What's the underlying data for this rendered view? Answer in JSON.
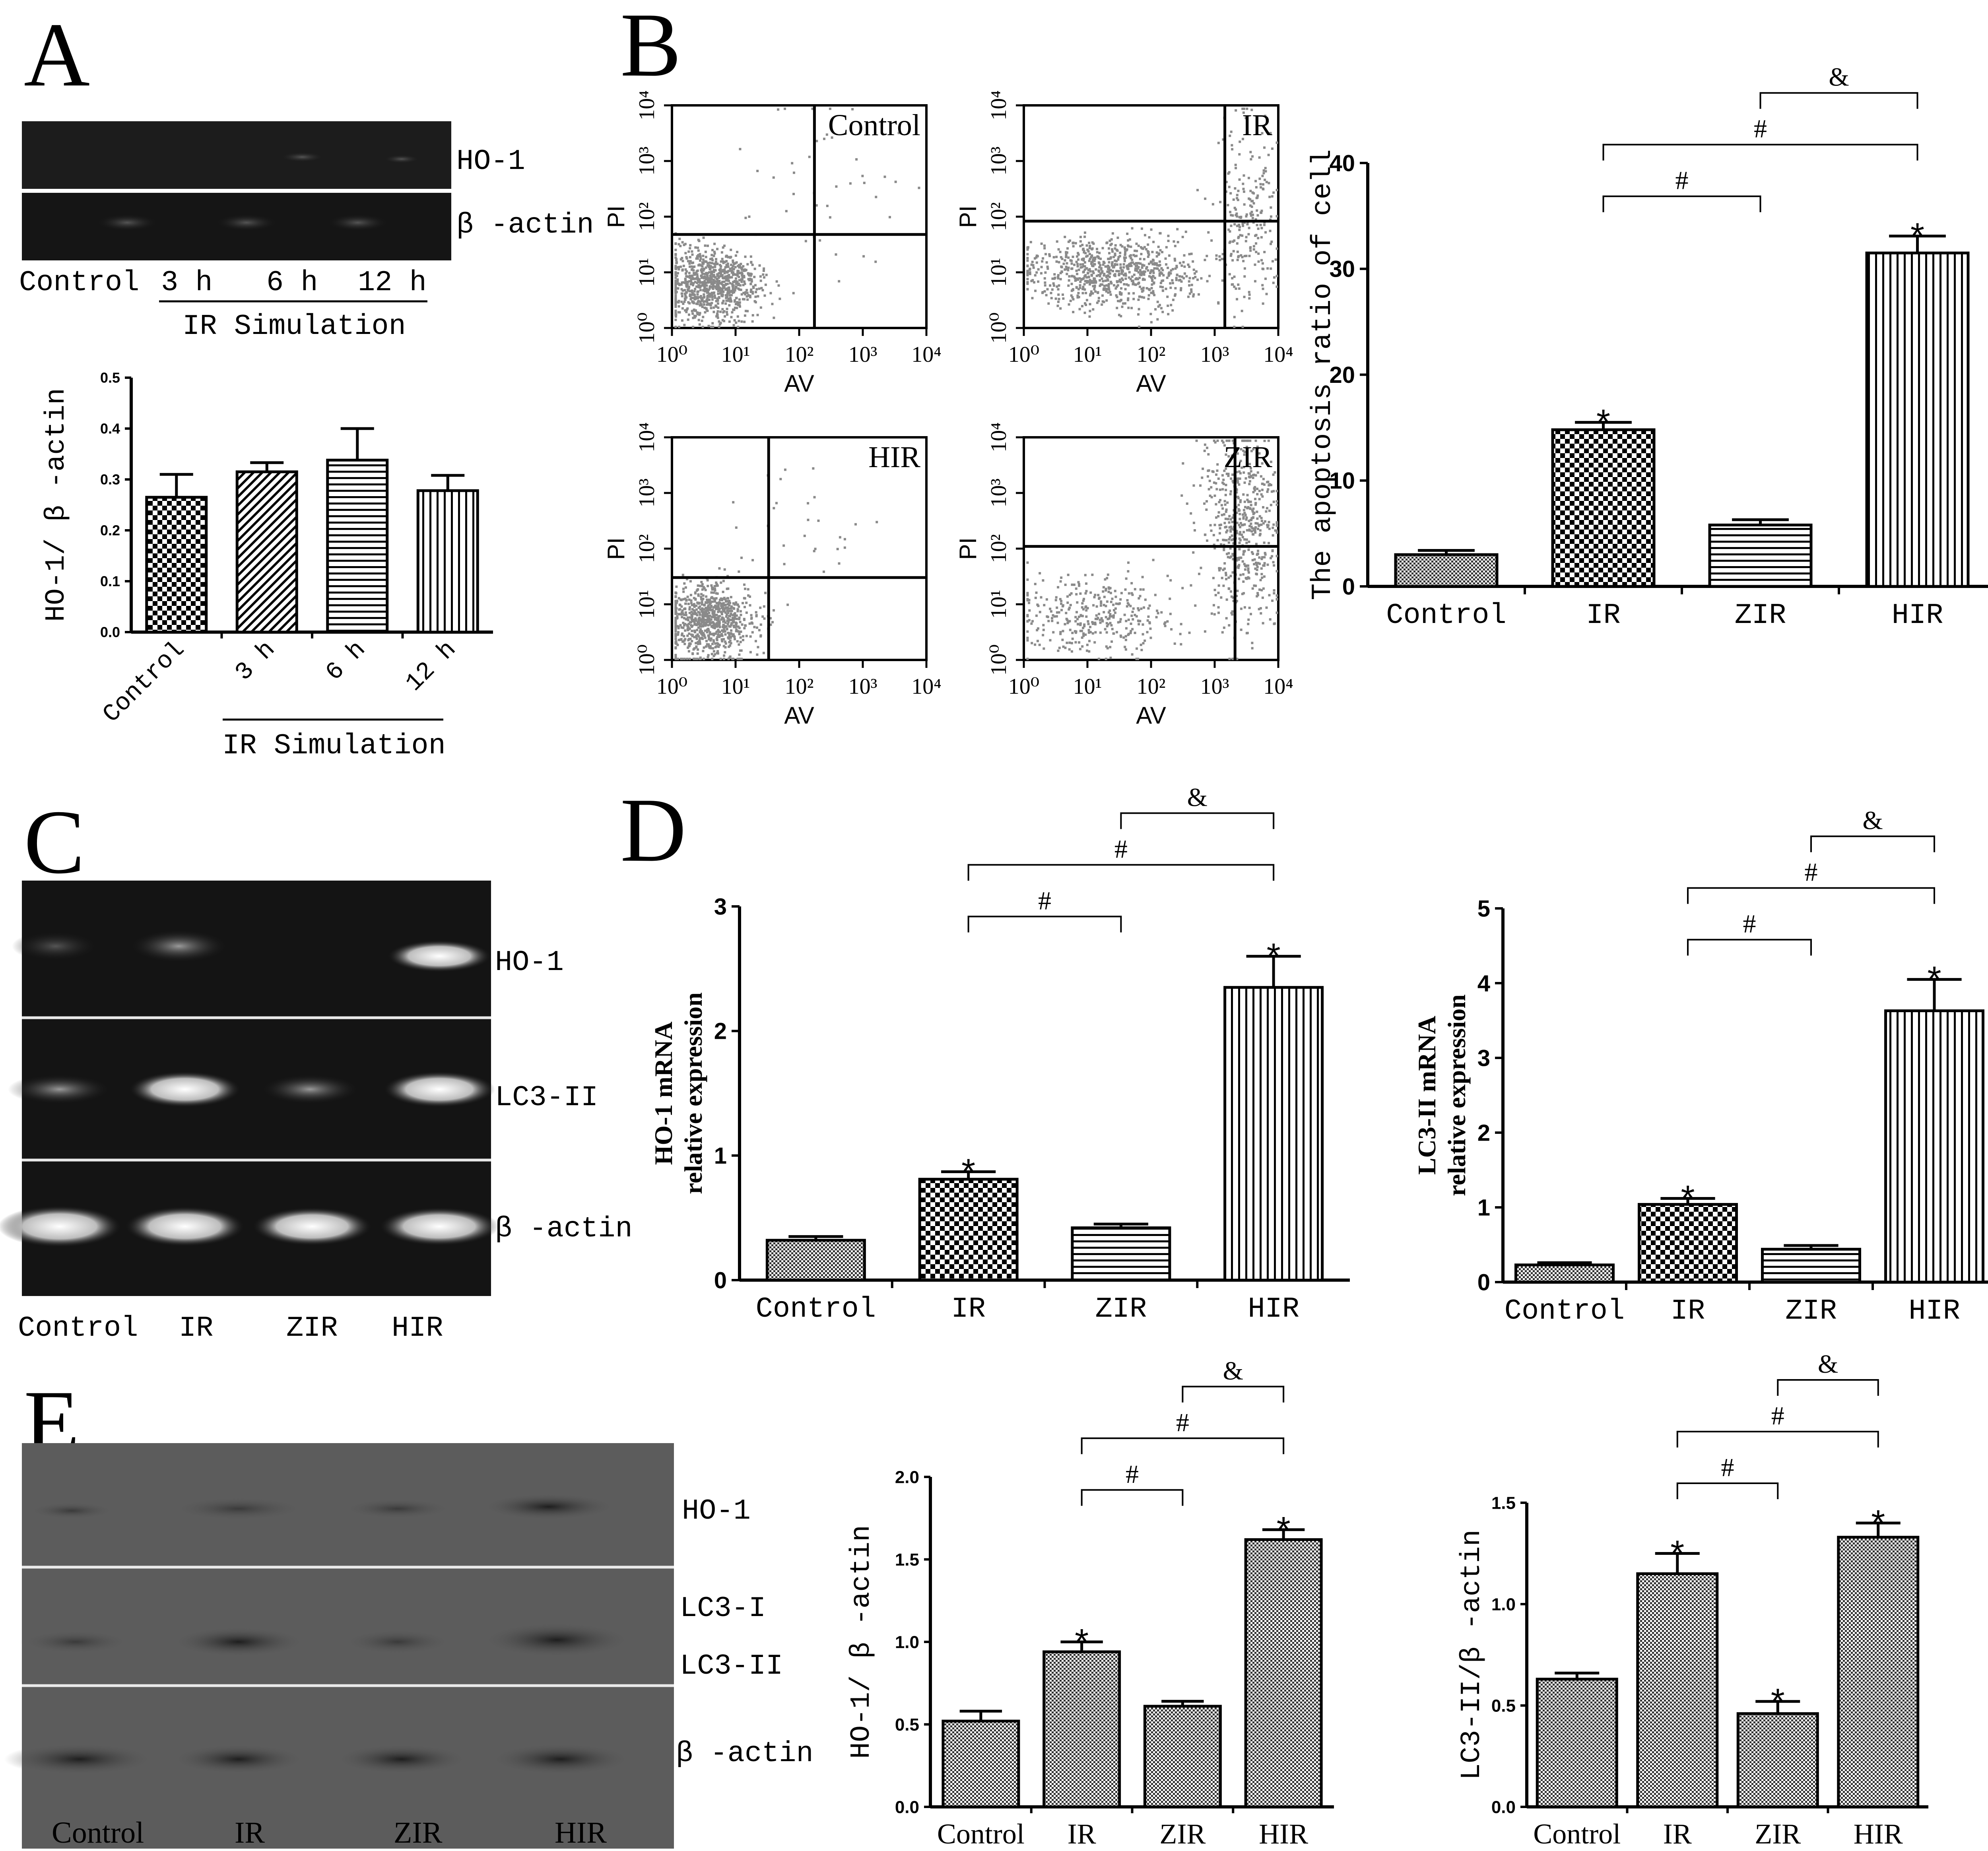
{
  "panels": {
    "A": {
      "letter": "A",
      "blot_labels": [
        "HO-1",
        "β -actin"
      ],
      "lane_labels": [
        "Control",
        "3 h",
        "6 h",
        "12 h"
      ],
      "group_label": "IR Simulation"
    },
    "B": {
      "letter": "B",
      "facs": [
        {
          "title": "Control",
          "ylabel": "PI",
          "xlabel": "AV"
        },
        {
          "title": "IR",
          "ylabel": "PI",
          "xlabel": "AV"
        },
        {
          "title": "HIR",
          "ylabel": "PI",
          "xlabel": "AV"
        },
        {
          "title": "ZIR",
          "ylabel": "PI",
          "xlabel": "AV"
        }
      ]
    },
    "C": {
      "letter": "C",
      "gel_labels": [
        "HO-1",
        "LC3-II",
        "β -actin"
      ],
      "lane_labels": [
        "Control",
        "IR",
        "ZIR",
        "HIR"
      ]
    },
    "D": {
      "letter": "D"
    },
    "E": {
      "letter": "E",
      "blot_labels": [
        "HO-1",
        "LC3-I",
        "LC3-II",
        "β -actin"
      ],
      "lane_labels": [
        "Control",
        "IR",
        "ZIR",
        "HIR"
      ]
    }
  },
  "chart_data": [
    {
      "id": "A_ho1",
      "type": "bar",
      "categories": [
        "Control",
        "3 h",
        "6 h",
        "12 h"
      ],
      "values": [
        0.265,
        0.315,
        0.338,
        0.278
      ],
      "errors": [
        0.045,
        0.018,
        0.062,
        0.03
      ],
      "ylabel": "HO-1/ β -actin",
      "xlabel": "",
      "group_label": "IR Simulation",
      "ylim": [
        0,
        0.5
      ],
      "yticks": [
        "0.0",
        "0.1",
        "0.2",
        "0.3",
        "0.4",
        "0.5"
      ],
      "significance": []
    },
    {
      "id": "B_apoptosis",
      "type": "bar",
      "categories": [
        "Control",
        "IR",
        "ZIR",
        "HIR"
      ],
      "values": [
        3.0,
        14.8,
        5.8,
        31.5
      ],
      "errors": [
        0.4,
        0.7,
        0.5,
        1.6
      ],
      "ylabel": "The apoptosis ratio of cell",
      "xlabel": "",
      "ylim": [
        0,
        40
      ],
      "yticks": [
        "0",
        "10",
        "20",
        "30",
        "40"
      ],
      "stars": [
        "",
        "*",
        "",
        "*"
      ],
      "significance": [
        {
          "from": 1,
          "to": 2,
          "mark": "#"
        },
        {
          "from": 1,
          "to": 3,
          "mark": "#"
        },
        {
          "from": 2,
          "to": 3,
          "mark": "&"
        }
      ]
    },
    {
      "id": "D_ho1_mrna",
      "type": "bar",
      "categories": [
        "Control",
        "IR",
        "ZIR",
        "HIR"
      ],
      "values": [
        0.32,
        0.81,
        0.42,
        2.35
      ],
      "errors": [
        0.03,
        0.06,
        0.03,
        0.25
      ],
      "ylabel": "HO-1 mRNA relative expression",
      "ylabel_lines": [
        "HO-1 mRNA",
        "relative expression"
      ],
      "xlabel": "",
      "ylim": [
        0,
        3
      ],
      "yticks": [
        "0",
        "1",
        "2",
        "3"
      ],
      "stars": [
        "",
        "*",
        "",
        "*"
      ],
      "significance": [
        {
          "from": 1,
          "to": 2,
          "mark": "#"
        },
        {
          "from": 1,
          "to": 3,
          "mark": "#"
        },
        {
          "from": 2,
          "to": 3,
          "mark": "&"
        }
      ]
    },
    {
      "id": "D_lc3_mrna",
      "type": "bar",
      "categories": [
        "Control",
        "IR",
        "ZIR",
        "HIR"
      ],
      "values": [
        0.23,
        1.04,
        0.44,
        3.63
      ],
      "errors": [
        0.03,
        0.08,
        0.05,
        0.42
      ],
      "ylabel": "LC3-II mRNA relative expression",
      "ylabel_lines": [
        "LC3-II mRNA",
        "relative expression"
      ],
      "xlabel": "",
      "ylim": [
        0,
        5
      ],
      "yticks": [
        "0",
        "1",
        "2",
        "3",
        "4",
        "5"
      ],
      "stars": [
        "",
        "*",
        "",
        "*"
      ],
      "significance": [
        {
          "from": 1,
          "to": 2,
          "mark": "#"
        },
        {
          "from": 1,
          "to": 3,
          "mark": "#"
        },
        {
          "from": 2,
          "to": 3,
          "mark": "&"
        }
      ]
    },
    {
      "id": "E_ho1",
      "type": "bar",
      "categories": [
        "Control",
        "IR",
        "ZIR",
        "HIR"
      ],
      "values": [
        0.52,
        0.94,
        0.61,
        1.62
      ],
      "errors": [
        0.06,
        0.06,
        0.03,
        0.06
      ],
      "ylabel": "HO-1/ β -actin",
      "xlabel": "",
      "ylim": [
        0,
        2.0
      ],
      "yticks": [
        "0.0",
        "0.5",
        "1.0",
        "1.5",
        "2.0"
      ],
      "stars": [
        "",
        "*",
        "",
        "*"
      ],
      "significance": [
        {
          "from": 1,
          "to": 2,
          "mark": "#"
        },
        {
          "from": 1,
          "to": 3,
          "mark": "#"
        },
        {
          "from": 2,
          "to": 3,
          "mark": "&"
        }
      ]
    },
    {
      "id": "E_lc3",
      "type": "bar",
      "categories": [
        "Control",
        "IR",
        "ZIR",
        "HIR"
      ],
      "values": [
        0.63,
        1.15,
        0.46,
        1.33
      ],
      "errors": [
        0.03,
        0.1,
        0.06,
        0.07
      ],
      "ylabel": "LC3-II/β -actin",
      "xlabel": "",
      "ylim": [
        0,
        1.5
      ],
      "yticks": [
        "0.0",
        "0.5",
        "1.0",
        "1.5"
      ],
      "stars": [
        "",
        "*",
        "*",
        "*"
      ],
      "significance": [
        {
          "from": 1,
          "to": 2,
          "mark": "#"
        },
        {
          "from": 1,
          "to": 3,
          "mark": "#"
        },
        {
          "from": 2,
          "to": 3,
          "mark": "&"
        }
      ]
    }
  ]
}
